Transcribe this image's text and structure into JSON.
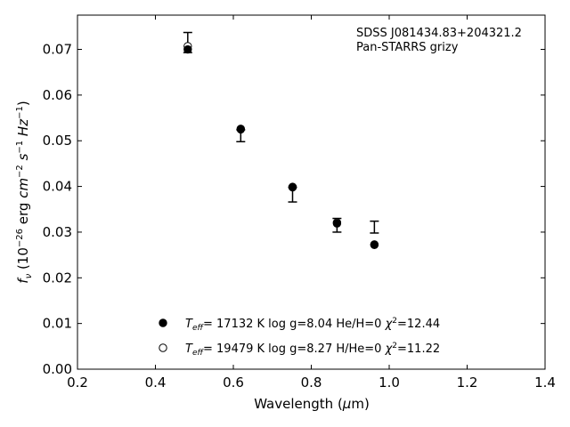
{
  "chart_data": {
    "type": "scatter",
    "title": "",
    "annotation": [
      "SDSS J081434.83+204321.2",
      "Pan-STARRS grizy"
    ],
    "xlabel": "Wavelength (μm)",
    "ylabel": "f_ν (10^-26 erg cm^-2 s^-1 Hz^-1)",
    "xlim": [
      0.2,
      1.4
    ],
    "ylim": [
      0.0,
      0.0775
    ],
    "xticks": [
      0.2,
      0.4,
      0.6,
      0.8,
      1.0,
      1.2,
      1.4
    ],
    "xtick_labels": [
      "0.2",
      "0.4",
      "0.6",
      "0.8",
      "1.0",
      "1.2",
      "1.4"
    ],
    "yticks": [
      0.0,
      0.01,
      0.02,
      0.03,
      0.04,
      0.05,
      0.06,
      0.07
    ],
    "ytick_labels": [
      "0.00",
      "0.01",
      "0.02",
      "0.03",
      "0.04",
      "0.05",
      "0.06",
      "0.07"
    ],
    "grid": false,
    "legend_placement": "lower-center",
    "observed": {
      "x": [
        0.483,
        0.619,
        0.752,
        0.866,
        0.962
      ],
      "y": [
        0.0715,
        0.0511,
        0.0382,
        0.0315,
        0.0311
      ],
      "yerr": [
        0.0022,
        0.0013,
        0.0016,
        0.0015,
        0.0013
      ]
    },
    "series": [
      {
        "name": "T_eff= 17132 K  log g=8.04  He/H=0  χ²=12.44",
        "label_parts": {
          "pre": "T",
          "sub": "eff",
          "mid": "= 17132 K  log g=8.04  He/H=0  ",
          "chi": "χ",
          "sup": "2",
          "post": "=12.44"
        },
        "marker": "filled-circle",
        "x": [
          0.483,
          0.619,
          0.752,
          0.866,
          0.962
        ],
        "y": [
          0.07,
          0.0525,
          0.0399,
          0.0319,
          0.0272
        ]
      },
      {
        "name": "T_eff= 19479 K  log g=8.27  H/He=0  χ²=11.22",
        "label_parts": {
          "pre": "T",
          "sub": "eff",
          "mid": "= 19479 K  log g=8.27  H/He=0  ",
          "chi": "χ",
          "sup": "2",
          "post": "=11.22"
        },
        "marker": "open-circle",
        "x": [
          0.483,
          0.619,
          0.752,
          0.866,
          0.962
        ],
        "y": [
          0.0707,
          0.0526,
          0.0398,
          0.0321,
          0.0273
        ]
      }
    ]
  }
}
